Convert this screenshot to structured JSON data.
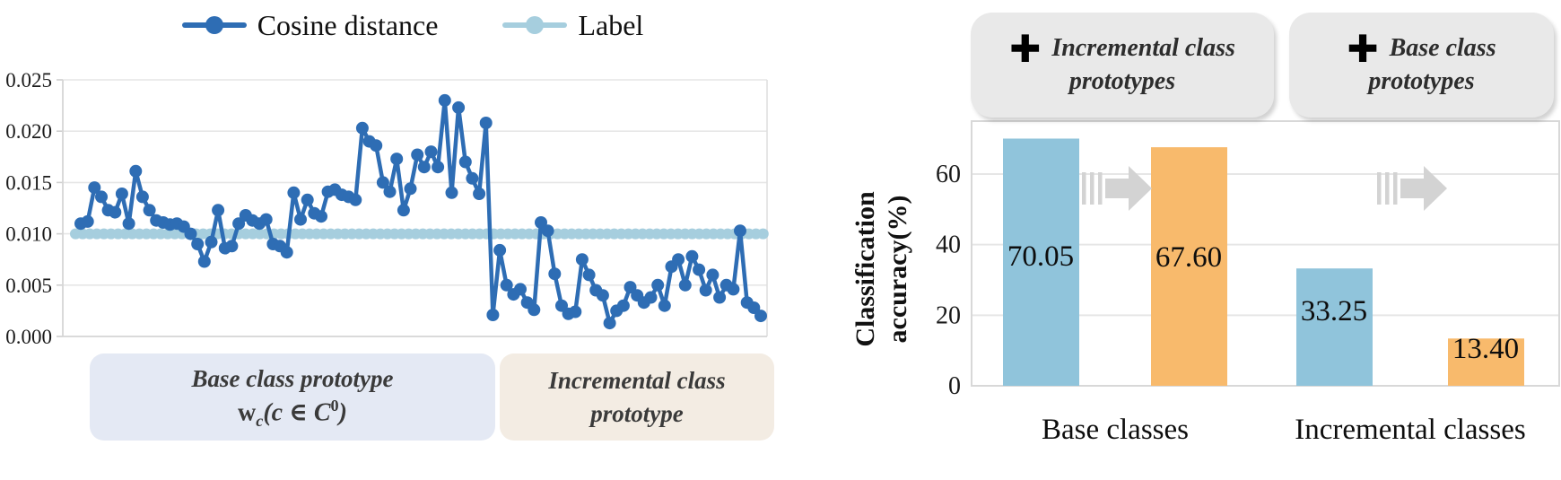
{
  "chart_data": [
    {
      "type": "line",
      "title": "",
      "legend_position": "top",
      "grid": "horizontal",
      "legend": [
        {
          "label": "Cosine distance",
          "color": "#2e6db4"
        },
        {
          "label": "Label",
          "color": "#a6cede"
        }
      ],
      "ylim": [
        0,
        0.025
      ],
      "yticks": [
        "0.025",
        "0.020",
        "0.015",
        "0.010",
        "0.005",
        "0.000"
      ],
      "series": [
        {
          "name": "Cosine distance",
          "color": "#2e6db4",
          "values": [
            0.011,
            0.0112,
            0.0145,
            0.0136,
            0.0123,
            0.0121,
            0.0139,
            0.011,
            0.0161,
            0.0136,
            0.0123,
            0.0113,
            0.0111,
            0.0109,
            0.011,
            0.0107,
            0.01,
            0.009,
            0.0073,
            0.0092,
            0.0123,
            0.0086,
            0.0088,
            0.011,
            0.0118,
            0.0113,
            0.011,
            0.0114,
            0.009,
            0.0088,
            0.0082,
            0.014,
            0.0114,
            0.0133,
            0.012,
            0.0117,
            0.0141,
            0.0143,
            0.0138,
            0.0136,
            0.0133,
            0.0203,
            0.019,
            0.0186,
            0.015,
            0.0141,
            0.0173,
            0.0123,
            0.0144,
            0.0177,
            0.0165,
            0.018,
            0.0165,
            0.023,
            0.014,
            0.0223,
            0.017,
            0.0154,
            0.0139,
            0.0208,
            0.0021,
            0.0084,
            0.005,
            0.0041,
            0.0046,
            0.0033,
            0.0026,
            0.0111,
            0.0103,
            0.0061,
            0.003,
            0.0022,
            0.0024,
            0.0075,
            0.006,
            0.0045,
            0.004,
            0.0013,
            0.0025,
            0.003,
            0.0048,
            0.004,
            0.0033,
            0.0038,
            0.005,
            0.003,
            0.0068,
            0.0075,
            0.005,
            0.0078,
            0.0065,
            0.0045,
            0.006,
            0.0038,
            0.005,
            0.0046,
            0.0103,
            0.0033,
            0.0028,
            0.002
          ]
        },
        {
          "name": "Label",
          "color": "#a6cede",
          "constant_value": 0.01
        }
      ],
      "region_labels": [
        {
          "line1": "Base class prototype",
          "math": {
            "w": "w",
            "sub": "c",
            "mid": "(c ∈ C",
            "sup": "0",
            "close": ")"
          },
          "bg": "#e4e9f4"
        },
        {
          "line1": "Incremental class",
          "line2": "prototype",
          "bg": "#f3ece3"
        }
      ]
    },
    {
      "type": "bar",
      "ylabel_line1": "Classification",
      "ylabel_line2": "accuracy(%)",
      "categories": [
        "Base classes",
        "Incremental classes"
      ],
      "series": [
        {
          "name": "blue bars",
          "color": "#90c4db",
          "values": [
            70.05,
            33.25
          ]
        },
        {
          "name": "orange bars",
          "color": "#f8ba6c",
          "values": [
            67.6,
            13.4
          ]
        }
      ],
      "bar_value_labels": [
        "70.05",
        "67.60",
        "33.25",
        "13.40"
      ],
      "yticks": [
        0,
        20,
        40,
        60
      ],
      "ylim": [
        0,
        75
      ],
      "grid": "horizontal",
      "arrow_color": "#d3d3d3",
      "callouts": [
        {
          "icon_glyph": "✚",
          "line1": "Incremental class",
          "line2": "prototypes"
        },
        {
          "icon_glyph": "✚",
          "line1": "Base class",
          "line2": "prototypes"
        }
      ]
    }
  ]
}
